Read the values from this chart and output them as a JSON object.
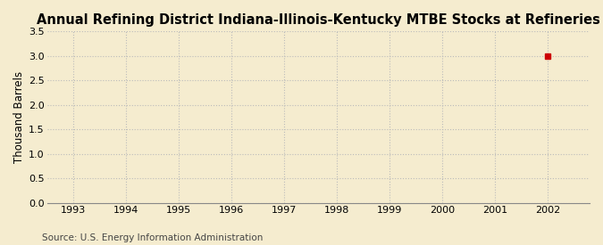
{
  "title": "Annual Refining District Indiana-Illinois-Kentucky MTBE Stocks at Refineries",
  "ylabel": "Thousand Barrels",
  "xlabel": "",
  "source_text": "Source: U.S. Energy Information Administration",
  "background_color": "#F5ECCF",
  "plot_bg_color": "#F5ECCF",
  "xlim": [
    1992.5,
    2002.8
  ],
  "ylim": [
    0.0,
    3.5
  ],
  "xticks": [
    1993,
    1994,
    1995,
    1996,
    1997,
    1998,
    1999,
    2000,
    2001,
    2002
  ],
  "yticks": [
    0.0,
    0.5,
    1.0,
    1.5,
    2.0,
    2.5,
    3.0,
    3.5
  ],
  "data_x": [
    2002
  ],
  "data_y": [
    3.0
  ],
  "data_color": "#CC0000",
  "data_marker": "s",
  "data_marker_size": 4,
  "title_fontsize": 10.5,
  "axis_label_fontsize": 8.5,
  "tick_fontsize": 8,
  "source_fontsize": 7.5,
  "grid_color": "#BBBBBB",
  "grid_linestyle": ":",
  "grid_linewidth": 0.8,
  "spine_color": "#888888"
}
